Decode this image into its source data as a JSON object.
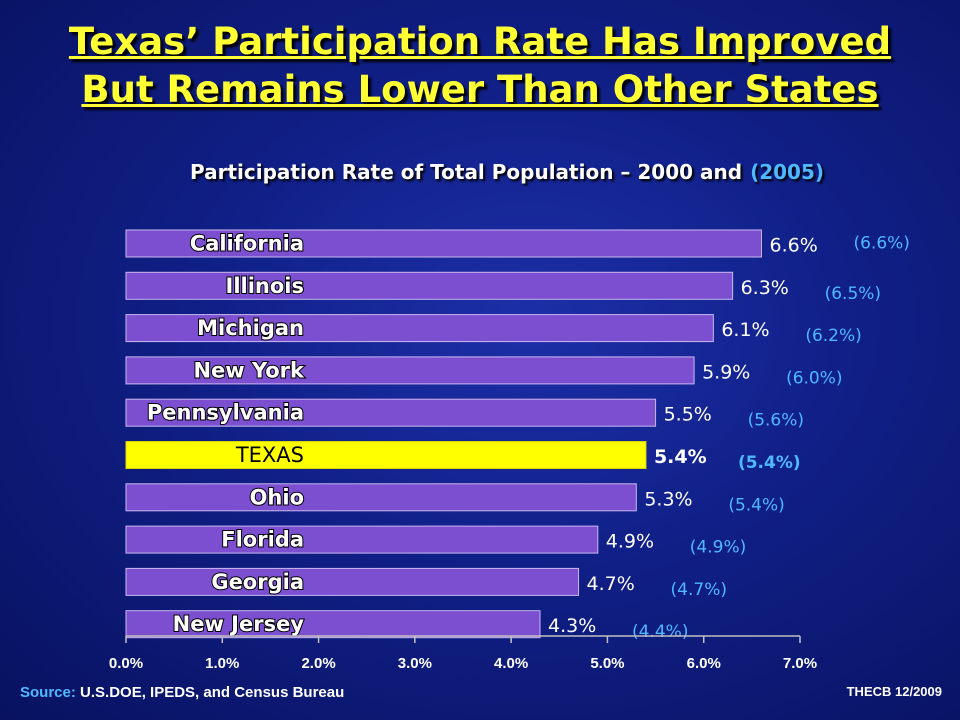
{
  "title_line1": "Texas’ Participation Rate Has Improved",
  "title_line2": "But Remains Lower Than Other States",
  "subtitle_main": "Participation Rate of Total Population – 2000 and",
  "subtitle_alt": "(2005)",
  "source_label": "Source:",
  "source_text": "U.S.DOE, IPEDS, and Census Bureau",
  "credit": "THECB 12/2009",
  "colors": {
    "bar": "#7b4fd0",
    "highlight": "#ffff00",
    "alt_label": "#4fb8ff",
    "title": "#ffff33"
  },
  "chart_data": {
    "type": "bar",
    "orientation": "horizontal",
    "categories": [
      "California",
      "Illinois",
      "Michigan",
      "New York",
      "Pennsylvania",
      "TEXAS",
      "Ohio",
      "Florida",
      "Georgia",
      "New Jersey"
    ],
    "series": [
      {
        "values": [
          6.6,
          6.3,
          6.1,
          5.9,
          5.5,
          5.4,
          5.3,
          4.9,
          4.7,
          4.3
        ],
        "labels": [
          "6.6%",
          "6.3%",
          "6.1%",
          "5.9%",
          "5.5%",
          "5.4%",
          "5.3%",
          "4.9%",
          "4.7%",
          "4.3%"
        ]
      },
      {
        "values": [
          6.6,
          6.5,
          6.2,
          6.0,
          5.6,
          5.4,
          5.4,
          4.9,
          4.7,
          4.4
        ],
        "labels": [
          "(6.6%)",
          "(6.5%)",
          "(6.2%)",
          "(6.0%)",
          "(5.6%)",
          "(5.4%)",
          "(5.4%)",
          "(4.9%)",
          "(4.7%)",
          "(4.4%)"
        ]
      }
    ],
    "highlight_category": "TEXAS",
    "xlim": [
      0,
      7
    ],
    "xticks": [
      "0.0%",
      "1.0%",
      "2.0%",
      "3.0%",
      "4.0%",
      "5.0%",
      "6.0%",
      "7.0%"
    ],
    "grid": false
  }
}
